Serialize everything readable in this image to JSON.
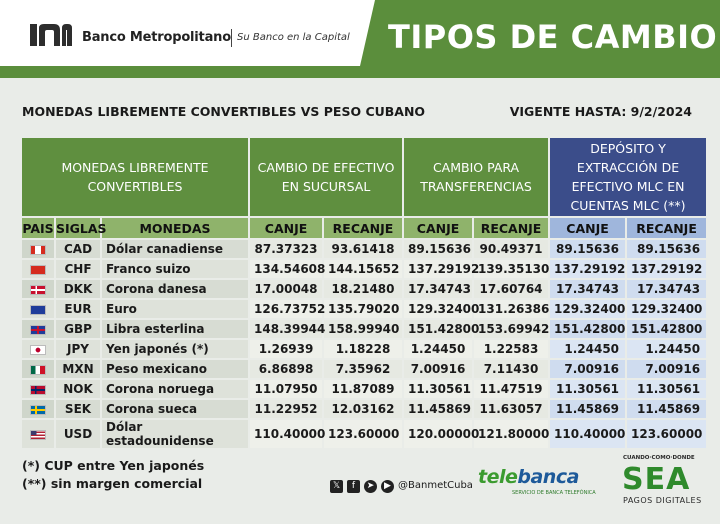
{
  "header": {
    "bank_name": "Banco Metropolitano",
    "tagline": "Su Banco en la Capital",
    "title": "TIPOS DE CAMBIO"
  },
  "subtitle": "MONEDAS LIBREMENTE CONVERTIBLES VS PESO CUBANO",
  "valid_until": "VIGENTE HASTA: 9/2/2024",
  "table": {
    "group_headers": [
      "MONEDAS LIBREMENTE CONVERTIBLES",
      "CAMBIO DE EFECTIVO EN SUCURSAL",
      "CAMBIO PARA TRANSFERENCIAS",
      "DEPÓSITO Y EXTRACCIÓN DE EFECTIVO MLC EN CUENTAS MLC (**)"
    ],
    "sub_headers": [
      "PAIS",
      "SIGLAS",
      "MONEDAS",
      "CANJE",
      "RECANJE",
      "CANJE",
      "RECANJE",
      "CANJE",
      "RECANJE"
    ],
    "rows": [
      {
        "flag": "canada-flag-icon",
        "code": "CAD",
        "name": "Dólar canadiense",
        "v": [
          "87.37323",
          "93.61418",
          "89.15636",
          "90.49371",
          "89.15636",
          "89.15636"
        ]
      },
      {
        "flag": "switzerland-flag-icon",
        "code": "CHF",
        "name": "Franco suizo",
        "v": [
          "134.54608",
          "144.15652",
          "137.29192",
          "139.35130",
          "137.29192",
          "137.29192"
        ]
      },
      {
        "flag": "denmark-flag-icon",
        "code": "DKK",
        "name": "Corona danesa",
        "v": [
          "17.00048",
          "18.21480",
          "17.34743",
          "17.60764",
          "17.34743",
          "17.34743"
        ]
      },
      {
        "flag": "eu-flag-icon",
        "code": "EUR",
        "name": "Euro",
        "v": [
          "126.73752",
          "135.79020",
          "129.32400",
          "131.26386",
          "129.32400",
          "129.32400"
        ]
      },
      {
        "flag": "uk-flag-icon",
        "code": "GBP",
        "name": "Libra esterlina",
        "v": [
          "148.39944",
          "158.99940",
          "151.42800",
          "153.69942",
          "151.42800",
          "151.42800"
        ]
      },
      {
        "flag": "japan-flag-icon",
        "code": "JPY",
        "name": "Yen japonés (*)",
        "v": [
          "1.26939",
          "1.18228",
          "1.24450",
          "1.22583",
          "1.24450",
          "1.24450"
        ]
      },
      {
        "flag": "mexico-flag-icon",
        "code": "MXN",
        "name": "Peso mexicano",
        "v": [
          "6.86898",
          "7.35962",
          "7.00916",
          "7.11430",
          "7.00916",
          "7.00916"
        ]
      },
      {
        "flag": "norway-flag-icon",
        "code": "NOK",
        "name": "Corona noruega",
        "v": [
          "11.07950",
          "11.87089",
          "11.30561",
          "11.47519",
          "11.30561",
          "11.30561"
        ]
      },
      {
        "flag": "sweden-flag-icon",
        "code": "SEK",
        "name": "Corona sueca",
        "v": [
          "11.22952",
          "12.03162",
          "11.45869",
          "11.63057",
          "11.45869",
          "11.45869"
        ]
      },
      {
        "flag": "usa-flag-icon",
        "code": "USD",
        "name": "Dólar estadounidense",
        "v": [
          "110.40000",
          "123.60000",
          "120.00000",
          "121.80000",
          "110.40000",
          "123.60000"
        ]
      }
    ]
  },
  "notes": {
    "n1": "(*) CUP entre Yen japonés",
    "n2": "(**) sin margen comercial"
  },
  "footer": {
    "social_icons": [
      "x-icon",
      "facebook-icon",
      "telegram-icon",
      "youtube-icon"
    ],
    "handle": "@BanmetCuba",
    "telebanca_a": "tele",
    "telebanca_b": "banca",
    "telebanca_sub": "SERVICIO DE BANCA TELEFÓNICA",
    "sea_top": "CUANDO·COMO·DONDE",
    "sea": "SEA",
    "sea_sub": "PAGOS DIGITALES"
  },
  "colors": {
    "brand_green": "#5b8e3c",
    "mlc_blue": "#3b4d8a"
  }
}
